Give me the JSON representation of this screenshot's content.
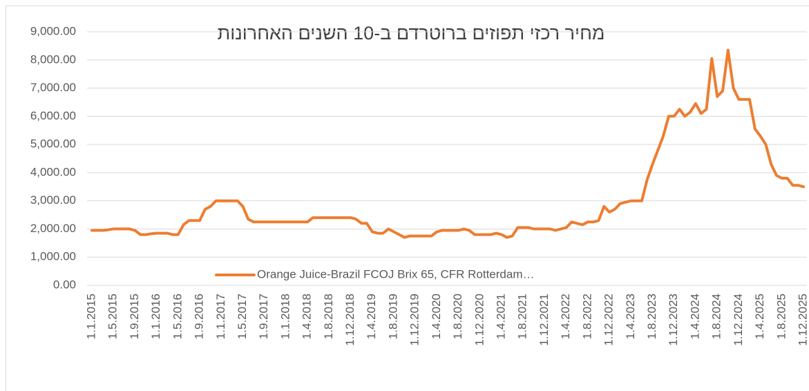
{
  "chart_data": {
    "type": "line",
    "title": "מחיר רכזי תפוזים ברוטרדם ב-10 השנים האחרונות",
    "categories": [
      "1.1.2015",
      null,
      null,
      null,
      "1.5.2015",
      null,
      null,
      null,
      "1.9.2015",
      null,
      null,
      null,
      "1.1.2016",
      null,
      null,
      null,
      "1.5.2016",
      null,
      null,
      null,
      "1.9.2016",
      null,
      null,
      null,
      "1.1.2017",
      null,
      null,
      null,
      "1.5.2017",
      null,
      null,
      null,
      "1.9.2017",
      null,
      null,
      null,
      "1.1.2018",
      null,
      null,
      null,
      "1.4.2018",
      null,
      null,
      null,
      "1.8.2018",
      null,
      null,
      null,
      "1.12.2018",
      null,
      null,
      null,
      "1.4.2019",
      null,
      null,
      null,
      "1.8.2019",
      null,
      null,
      null,
      "1.12.2019",
      null,
      null,
      null,
      "1.4.2020",
      null,
      null,
      null,
      "1.8.2020",
      null,
      null,
      null,
      "1.12.2020",
      null,
      null,
      null,
      "1.4.2021",
      null,
      null,
      null,
      "1.8.2021",
      null,
      null,
      null,
      "1.12.2021",
      null,
      null,
      null,
      "1.4.2022",
      null,
      null,
      null,
      "1.8.2022",
      null,
      null,
      null,
      "1.12.2022",
      null,
      null,
      null,
      "1.4.2023",
      null,
      null,
      null,
      "1.8.2023",
      null,
      null,
      null,
      "1.12.2023",
      null,
      null,
      null,
      "1.4.2024",
      null,
      null,
      null,
      "1.8.2024",
      null,
      null,
      null,
      "1.12.2024",
      null,
      null,
      null,
      "1.4.2025",
      null,
      null,
      null,
      "1.8.2025",
      null,
      null,
      null,
      "1.12.2025"
    ],
    "series": [
      {
        "name": "Orange Juice-Brazil FCOJ Brix 65, CFR Rotterdam…",
        "color": "#ed7d31",
        "values": [
          1950,
          1950,
          1950,
          1970,
          2000,
          2000,
          2000,
          2000,
          1950,
          1800,
          1800,
          1830,
          1850,
          1850,
          1850,
          1800,
          1800,
          2150,
          2300,
          2300,
          2300,
          2700,
          2800,
          3000,
          3000,
          3000,
          3000,
          3000,
          2800,
          2350,
          2250,
          2250,
          2250,
          2250,
          2250,
          2250,
          2250,
          2250,
          2250,
          2250,
          2250,
          2400,
          2400,
          2400,
          2400,
          2400,
          2400,
          2400,
          2400,
          2350,
          2200,
          2200,
          1900,
          1850,
          1850,
          2000,
          1900,
          1800,
          1700,
          1750,
          1750,
          1750,
          1750,
          1750,
          1900,
          1950,
          1950,
          1950,
          1950,
          2000,
          1950,
          1800,
          1800,
          1800,
          1800,
          1850,
          1800,
          1700,
          1750,
          2050,
          2050,
          2050,
          2000,
          2000,
          2000,
          2000,
          1950,
          2000,
          2050,
          2250,
          2200,
          2150,
          2250,
          2250,
          2300,
          2800,
          2600,
          2700,
          2900,
          2950,
          3000,
          3000,
          3000,
          3750,
          4300,
          4800,
          5300,
          6000,
          6000,
          6250,
          6000,
          6150,
          6450,
          6100,
          6250,
          8050,
          6700,
          6900,
          8350,
          7000,
          6600,
          6600,
          6600,
          5550,
          5300,
          5000,
          4300,
          3900,
          3800,
          3800,
          3550,
          3550,
          3500
        ]
      }
    ],
    "ylim": [
      0,
      9000
    ],
    "yticks": [
      {
        "value": 0,
        "label": "0.00"
      },
      {
        "value": 1000,
        "label": "1,000.00"
      },
      {
        "value": 2000,
        "label": "2,000.00"
      },
      {
        "value": 3000,
        "label": "3,000.00"
      },
      {
        "value": 4000,
        "label": "4,000.00"
      },
      {
        "value": 5000,
        "label": "5,000.00"
      },
      {
        "value": 6000,
        "label": "6,000.00"
      },
      {
        "value": 7000,
        "label": "7,000.00"
      },
      {
        "value": 8000,
        "label": "8,000.00"
      },
      {
        "value": 9000,
        "label": "9,000.00"
      }
    ],
    "grid": true,
    "legend": "bottom"
  }
}
